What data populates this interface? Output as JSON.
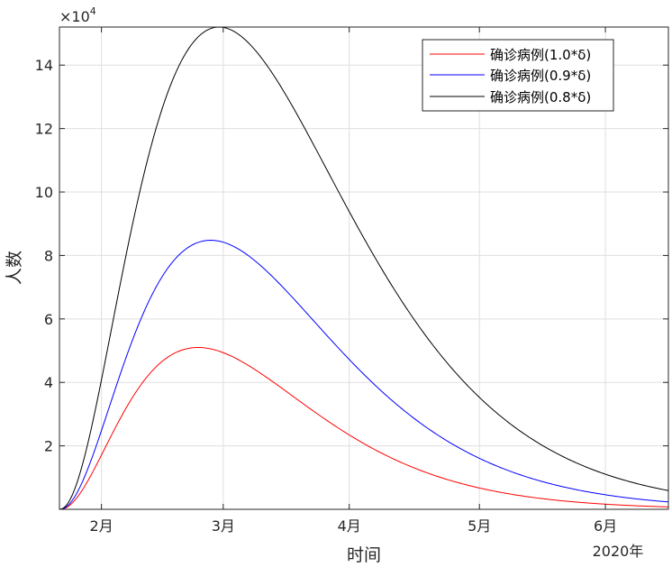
{
  "chart_data": {
    "type": "line",
    "xlabel": "时间",
    "ylabel": "人数",
    "y_exponent_label": "×10",
    "y_exponent_power": "4",
    "x_year_label": "2020年",
    "x_ticks": [
      {
        "label": "2月",
        "day": 1
      },
      {
        "label": "3月",
        "day": 30
      },
      {
        "label": "4月",
        "day": 60
      },
      {
        "label": "5月",
        "day": 91
      },
      {
        "label": "6月",
        "day": 121
      }
    ],
    "xlim_days": [
      -9,
      136
    ],
    "y_ticks": [
      2,
      4,
      6,
      8,
      10,
      12,
      14
    ],
    "ylim": [
      0,
      15.2
    ],
    "grid": true,
    "legend_position": "top-right",
    "series": [
      {
        "name": "确诊病例(1.0*δ)",
        "color": "#ff0000",
        "peak_day": 24,
        "peak": 5.1
      },
      {
        "name": "确诊病例(0.9*δ)",
        "color": "#0000ff",
        "peak_day": 27,
        "peak": 8.48
      },
      {
        "name": "确诊病例(0.8*δ)",
        "color": "#000000",
        "peak_day": 29,
        "peak": 15.2
      }
    ]
  }
}
